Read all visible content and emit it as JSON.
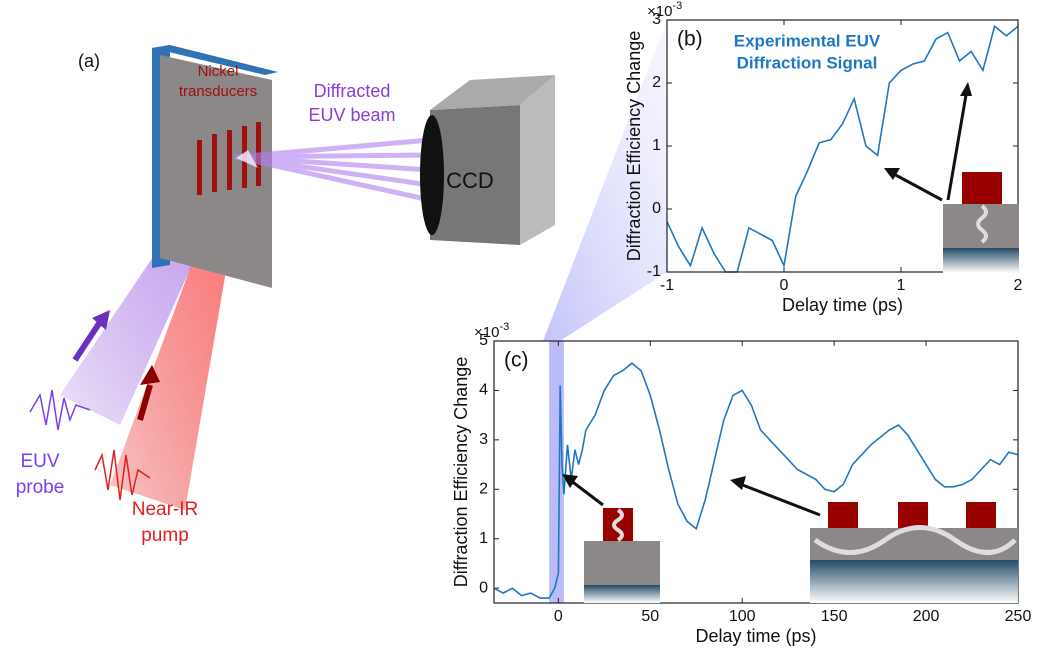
{
  "diagram": {
    "panel_label": "(a)",
    "transducer_label": [
      "Nickel",
      "transducers"
    ],
    "beam_label": [
      "Diffracted",
      "EUV beam"
    ],
    "detector_label": "CCD",
    "probe_label": [
      "EUV",
      "probe"
    ],
    "pump_label": [
      "Near-IR",
      "pump"
    ]
  },
  "chart_data": [
    {
      "type": "line",
      "panel_label": "(b)",
      "annotation": [
        "Experimental EUV",
        "Diffraction Signal"
      ],
      "x_label": "Delay time (ps)",
      "y_label": "Diffraction Efficiency Change",
      "exponent": {
        "base": "×10",
        "power": "-3"
      },
      "x": [
        -1,
        -0.9,
        -0.8,
        -0.7,
        -0.6,
        -0.5,
        -0.4,
        -0.3,
        -0.2,
        -0.1,
        0,
        0.1,
        0.2,
        0.3,
        0.4,
        0.5,
        0.6,
        0.7,
        0.8,
        0.9,
        1.0,
        1.1,
        1.2,
        1.3,
        1.4,
        1.5,
        1.6,
        1.7,
        1.8,
        1.9,
        2.0
      ],
      "values": [
        -0.2,
        -0.6,
        -0.9,
        -0.3,
        -0.7,
        -1.0,
        -1.0,
        -0.3,
        -0.4,
        -0.5,
        -0.9,
        0.2,
        0.6,
        1.05,
        1.1,
        1.35,
        1.75,
        1.0,
        0.85,
        2.0,
        2.2,
        2.3,
        2.35,
        2.7,
        2.8,
        2.35,
        2.5,
        2.2,
        2.9,
        2.75,
        2.9
      ],
      "color": "#1f77c4",
      "xlim": [
        -1,
        2
      ],
      "ylim": [
        -1,
        3
      ],
      "xticks": [
        -1,
        0,
        1,
        2
      ],
      "yticks": [
        -1,
        0,
        1,
        2,
        3
      ]
    },
    {
      "type": "line",
      "panel_label": "(c)",
      "x_label": "Delay time (ps)",
      "y_label": "Diffraction Efficiency Change",
      "exponent": {
        "base": "×10",
        "power": "-3"
      },
      "x": [
        -35,
        -30,
        -25,
        -20,
        -15,
        -10,
        -5,
        -2,
        0,
        1,
        2,
        3,
        5,
        7,
        9,
        11,
        13,
        15,
        20,
        25,
        30,
        35,
        40,
        45,
        50,
        55,
        60,
        65,
        70,
        75,
        80,
        85,
        90,
        95,
        100,
        105,
        110,
        115,
        120,
        125,
        130,
        140,
        145,
        150,
        155,
        160,
        170,
        180,
        185,
        190,
        195,
        200,
        205,
        210,
        215,
        220,
        225,
        230,
        235,
        240,
        245,
        250
      ],
      "values": [
        0,
        -0.1,
        0,
        -0.15,
        -0.1,
        -0.2,
        -0.2,
        0,
        0.3,
        4.1,
        2.5,
        1.9,
        2.9,
        2.2,
        2.8,
        2.5,
        2.8,
        3.2,
        3.5,
        4.0,
        4.3,
        4.4,
        4.55,
        4.4,
        3.9,
        3.2,
        2.4,
        1.7,
        1.35,
        1.2,
        1.8,
        2.6,
        3.4,
        3.9,
        4.0,
        3.7,
        3.2,
        3.0,
        2.8,
        2.6,
        2.4,
        2.2,
        2.0,
        1.95,
        2.1,
        2.5,
        2.9,
        3.2,
        3.3,
        3.1,
        2.8,
        2.5,
        2.2,
        2.05,
        2.05,
        2.1,
        2.2,
        2.4,
        2.6,
        2.5,
        2.75,
        2.7
      ],
      "color": "#1f77c4",
      "highlight_x": [
        -5,
        3
      ],
      "xlim": [
        -35,
        250
      ],
      "ylim": [
        -0.3,
        5
      ],
      "xticks": [
        0,
        50,
        100,
        150,
        200,
        250
      ],
      "yticks": [
        0,
        1,
        2,
        3,
        4,
        5
      ]
    }
  ]
}
